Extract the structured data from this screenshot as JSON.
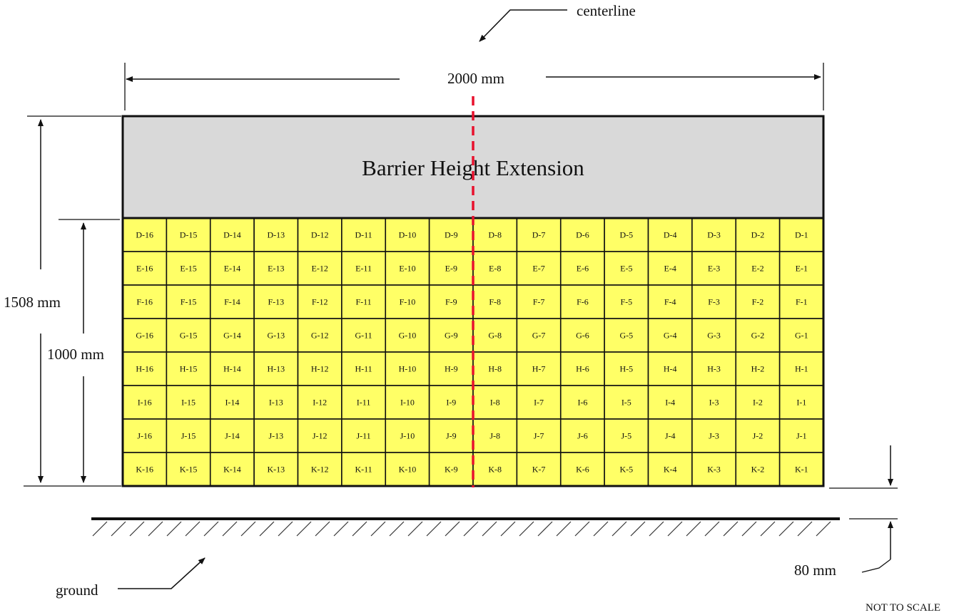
{
  "labels": {
    "centerline": "centerline",
    "width": "2000 mm",
    "extension": "Barrier Height Extension",
    "total_height": "1508 mm",
    "grid_height": "1000 mm",
    "clearance": "80 mm",
    "ground": "ground",
    "scale_note": "NOT TO SCALE"
  },
  "grid": {
    "rows": [
      "D",
      "E",
      "F",
      "G",
      "H",
      "I",
      "J",
      "K"
    ],
    "columns": [
      16,
      15,
      14,
      13,
      12,
      11,
      10,
      9,
      8,
      7,
      6,
      5,
      4,
      3,
      2,
      1
    ],
    "separator": "-"
  },
  "colors": {
    "extension_fill": "#d9d9d9",
    "cell_fill": "#ffff66",
    "centerline": "#e8112d",
    "outline": "#111111"
  }
}
